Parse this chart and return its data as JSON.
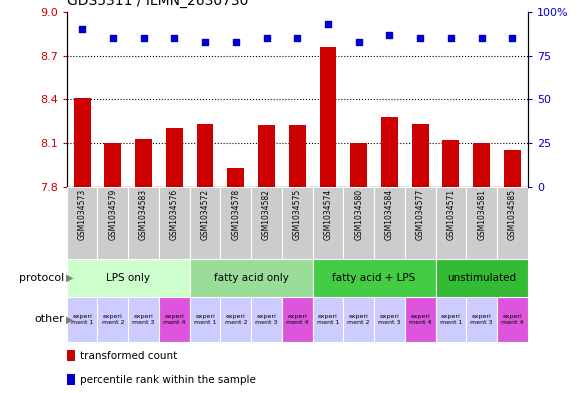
{
  "title": "GDS5311 / ILMN_2630730",
  "samples": [
    "GSM1034573",
    "GSM1034579",
    "GSM1034583",
    "GSM1034576",
    "GSM1034572",
    "GSM1034578",
    "GSM1034582",
    "GSM1034575",
    "GSM1034574",
    "GSM1034580",
    "GSM1034584",
    "GSM1034577",
    "GSM1034571",
    "GSM1034581",
    "GSM1034585"
  ],
  "bar_values": [
    8.41,
    8.1,
    8.13,
    8.2,
    8.23,
    7.93,
    8.22,
    8.22,
    8.76,
    8.1,
    8.28,
    8.23,
    8.12,
    8.1,
    8.05
  ],
  "dot_values": [
    90,
    85,
    85,
    85,
    83,
    83,
    85,
    85,
    93,
    83,
    87,
    85,
    85,
    85,
    85
  ],
  "ylim_left": [
    7.8,
    9.0
  ],
  "ylim_right": [
    0,
    100
  ],
  "yticks_left": [
    7.8,
    8.1,
    8.4,
    8.7,
    9.0
  ],
  "yticks_right": [
    0,
    25,
    50,
    75,
    100
  ],
  "bar_color": "#cc0000",
  "dot_color": "#0000cc",
  "bar_bottom": 7.8,
  "protocol_groups": [
    {
      "label": "LPS only",
      "start": 0,
      "end": 4,
      "color": "#ccffcc"
    },
    {
      "label": "fatty acid only",
      "start": 4,
      "end": 8,
      "color": "#99dd99"
    },
    {
      "label": "fatty acid + LPS",
      "start": 8,
      "end": 12,
      "color": "#44cc44"
    },
    {
      "label": "unstimulated",
      "start": 12,
      "end": 15,
      "color": "#33bb33"
    }
  ],
  "other_labels": [
    "experi\nment 1",
    "experi\nment 2",
    "experi\nment 3",
    "experi\nment 4",
    "experi\nment 1",
    "experi\nment 2",
    "experi\nment 3",
    "experi\nment 4",
    "experi\nment 1",
    "experi\nment 2",
    "experi\nment 3",
    "experi\nment 4",
    "experi\nment 1",
    "experi\nment 3",
    "experi\nment 4"
  ],
  "other_colors": [
    "#ccccff",
    "#ccccff",
    "#ccccff",
    "#dd55dd",
    "#ccccff",
    "#ccccff",
    "#ccccff",
    "#dd55dd",
    "#ccccff",
    "#ccccff",
    "#ccccff",
    "#dd55dd",
    "#ccccff",
    "#ccccff",
    "#dd55dd"
  ],
  "label_color_left": "#cc0000",
  "label_color_right": "#0000cc",
  "sample_bg": "#cccccc"
}
